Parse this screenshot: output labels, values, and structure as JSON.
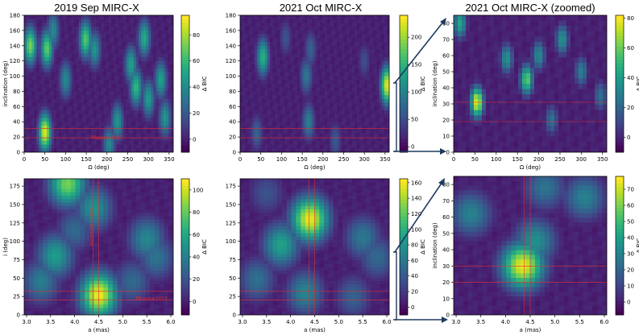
{
  "colors": {
    "accent_arrow": "#1f3a5f",
    "annotation": "#e03030",
    "viridis_low": "#440154",
    "viridis_high": "#fde725"
  },
  "chart_data": [
    {
      "id": "p1",
      "type": "heatmap",
      "title": "2019 Sep MIRC-X",
      "xlabel": "Ω (deg)",
      "ylabel": "inclination (deg)",
      "xlim": [
        0,
        360
      ],
      "ylim": [
        0,
        180
      ],
      "xticks": [
        0,
        50,
        100,
        150,
        200,
        250,
        300,
        350
      ],
      "yticks": [
        0,
        20,
        40,
        60,
        80,
        100,
        120,
        140,
        160,
        180
      ],
      "colorbar": {
        "label": "Δ BIC",
        "range": [
          -10,
          95
        ],
        "ticks": [
          0,
          20,
          40,
          60,
          80
        ]
      },
      "annotations": [
        {
          "text": "Pikaso+2017",
          "x": 200,
          "y": 19
        }
      ],
      "hotspots": [
        {
          "x": 50,
          "y": 26,
          "v": 92
        },
        {
          "x": 15,
          "y": 140,
          "v": 75
        },
        {
          "x": 55,
          "y": 136,
          "v": 70
        },
        {
          "x": 148,
          "y": 148,
          "v": 68
        },
        {
          "x": 170,
          "y": 135,
          "v": 45
        },
        {
          "x": 290,
          "y": 150,
          "v": 55
        },
        {
          "x": 258,
          "y": 115,
          "v": 50
        },
        {
          "x": 270,
          "y": 85,
          "v": 60
        },
        {
          "x": 300,
          "y": 70,
          "v": 48
        },
        {
          "x": 330,
          "y": 95,
          "v": 50
        },
        {
          "x": 225,
          "y": 40,
          "v": 45
        },
        {
          "x": 205,
          "y": 10,
          "v": 40
        },
        {
          "x": 100,
          "y": 95,
          "v": 40
        },
        {
          "x": 340,
          "y": 45,
          "v": 45
        },
        {
          "x": 70,
          "y": 160,
          "v": 40
        }
      ]
    },
    {
      "id": "p2",
      "type": "heatmap",
      "title": "2021 Oct MIRC-X",
      "xlabel": "Ω (deg)",
      "ylabel": "",
      "xlim": [
        0,
        360
      ],
      "ylim": [
        0,
        180
      ],
      "xticks": [
        0,
        50,
        100,
        150,
        200,
        250,
        300,
        350
      ],
      "yticks": [
        0,
        20,
        40,
        60,
        80,
        100,
        120,
        140,
        160,
        180
      ],
      "colorbar": {
        "label": "Δ BIC",
        "range": [
          -10,
          240
        ],
        "ticks": [
          0,
          50,
          100,
          150,
          200
        ]
      },
      "annotations": [],
      "hotspots": [
        {
          "x": 355,
          "y": 88,
          "v": 235
        },
        {
          "x": 55,
          "y": 125,
          "v": 150
        },
        {
          "x": 165,
          "y": 40,
          "v": 100
        },
        {
          "x": 160,
          "y": 100,
          "v": 90
        },
        {
          "x": 170,
          "y": 135,
          "v": 70
        },
        {
          "x": 40,
          "y": 25,
          "v": 70
        },
        {
          "x": 230,
          "y": 15,
          "v": 60
        },
        {
          "x": 110,
          "y": 150,
          "v": 55
        },
        {
          "x": 300,
          "y": 120,
          "v": 50
        }
      ]
    },
    {
      "id": "p3",
      "type": "heatmap",
      "title": "2021 Oct MIRC-X (zoomed)",
      "xlabel": "Ω (deg)",
      "ylabel": "inclination (deg)",
      "xlim": [
        0,
        360
      ],
      "ylim": [
        0,
        85
      ],
      "xticks": [
        0,
        50,
        100,
        150,
        200,
        250,
        300,
        350
      ],
      "yticks": [
        0,
        10,
        20,
        30,
        40,
        50,
        60,
        70,
        80
      ],
      "colorbar": {
        "label": "Δ BIC",
        "range": [
          -10,
          82
        ],
        "ticks": [
          0,
          20,
          40,
          60,
          80
        ]
      },
      "annotations": [],
      "hotspots": [
        {
          "x": 55,
          "y": 31,
          "v": 80
        },
        {
          "x": 172,
          "y": 45,
          "v": 60
        },
        {
          "x": 125,
          "y": 58,
          "v": 38
        },
        {
          "x": 255,
          "y": 70,
          "v": 38
        },
        {
          "x": 200,
          "y": 60,
          "v": 35
        },
        {
          "x": 300,
          "y": 50,
          "v": 30
        },
        {
          "x": 15,
          "y": 80,
          "v": 45
        },
        {
          "x": 230,
          "y": 20,
          "v": 25
        },
        {
          "x": 345,
          "y": 35,
          "v": 25
        }
      ]
    },
    {
      "id": "p4",
      "type": "heatmap",
      "title": "",
      "xlabel": "a (mas)",
      "ylabel": "i (deg)",
      "xlim": [
        2.95,
        6.05
      ],
      "ylim": [
        0,
        185
      ],
      "xticks": [
        3.0,
        3.5,
        4.0,
        4.5,
        5.0,
        5.5,
        6.0
      ],
      "yticks": [
        0,
        25,
        50,
        75,
        100,
        125,
        150,
        175
      ],
      "colorbar": {
        "label": "Δ BIC",
        "range": [
          -12,
          110
        ],
        "ticks": [
          0,
          20,
          40,
          60,
          80,
          100
        ]
      },
      "annotations": [
        {
          "text": "Pikaso+2017",
          "x": 5.6,
          "y": 22
        },
        {
          "text": "Anderson+2021",
          "x": 4.42,
          "y": 120
        }
      ],
      "hotspots": [
        {
          "x": 4.5,
          "y": 27,
          "v": 108
        },
        {
          "x": 3.85,
          "y": 178,
          "v": 85
        },
        {
          "x": 3.6,
          "y": 80,
          "v": 55
        },
        {
          "x": 4.4,
          "y": 145,
          "v": 50
        },
        {
          "x": 5.5,
          "y": 103,
          "v": 45
        },
        {
          "x": 3.3,
          "y": 45,
          "v": 40
        },
        {
          "x": 5.7,
          "y": 78,
          "v": 35
        },
        {
          "x": 4.0,
          "y": 115,
          "v": 30
        },
        {
          "x": 5.2,
          "y": 45,
          "v": 30
        }
      ]
    },
    {
      "id": "p5",
      "type": "heatmap",
      "title": "",
      "xlabel": "a (mas)",
      "ylabel": "",
      "xlim": [
        2.95,
        6.05
      ],
      "ylim": [
        0,
        185
      ],
      "xticks": [
        3.0,
        3.5,
        4.0,
        4.5,
        5.0,
        5.5,
        6.0
      ],
      "yticks": [
        0,
        25,
        50,
        75,
        100,
        125,
        150,
        175
      ],
      "colorbar": {
        "label": "Δ BIC",
        "range": [
          -10,
          165
        ],
        "ticks": [
          0,
          20,
          40,
          60,
          80,
          100,
          120,
          140,
          160
        ]
      },
      "annotations": [],
      "hotspots": [
        {
          "x": 4.4,
          "y": 130,
          "v": 160
        },
        {
          "x": 3.8,
          "y": 95,
          "v": 90
        },
        {
          "x": 5.5,
          "y": 105,
          "v": 60
        },
        {
          "x": 3.3,
          "y": 48,
          "v": 55
        },
        {
          "x": 4.3,
          "y": 30,
          "v": 70
        },
        {
          "x": 5.3,
          "y": 25,
          "v": 45
        },
        {
          "x": 5.8,
          "y": 78,
          "v": 50
        },
        {
          "x": 3.5,
          "y": 165,
          "v": 35
        }
      ]
    },
    {
      "id": "p6",
      "type": "heatmap",
      "title": "",
      "xlabel": "a (mas)",
      "ylabel": "inclination (deg)",
      "xlim": [
        2.95,
        6.05
      ],
      "ylim": [
        0,
        85
      ],
      "xticks": [
        3.0,
        3.5,
        4.0,
        4.5,
        5.0,
        5.5,
        6.0
      ],
      "yticks": [
        0,
        10,
        20,
        30,
        40,
        50,
        60,
        70,
        80
      ],
      "colorbar": {
        "label": "Δ BIC",
        "range": [
          -8,
          78
        ],
        "ticks": [
          0,
          10,
          20,
          30,
          40,
          50,
          60,
          70
        ]
      },
      "annotations": [],
      "hotspots": [
        {
          "x": 4.35,
          "y": 30,
          "v": 76
        },
        {
          "x": 4.6,
          "y": 45,
          "v": 35
        },
        {
          "x": 5.6,
          "y": 72,
          "v": 30
        },
        {
          "x": 3.3,
          "y": 62,
          "v": 30
        },
        {
          "x": 4.8,
          "y": 78,
          "v": 25
        }
      ]
    }
  ]
}
